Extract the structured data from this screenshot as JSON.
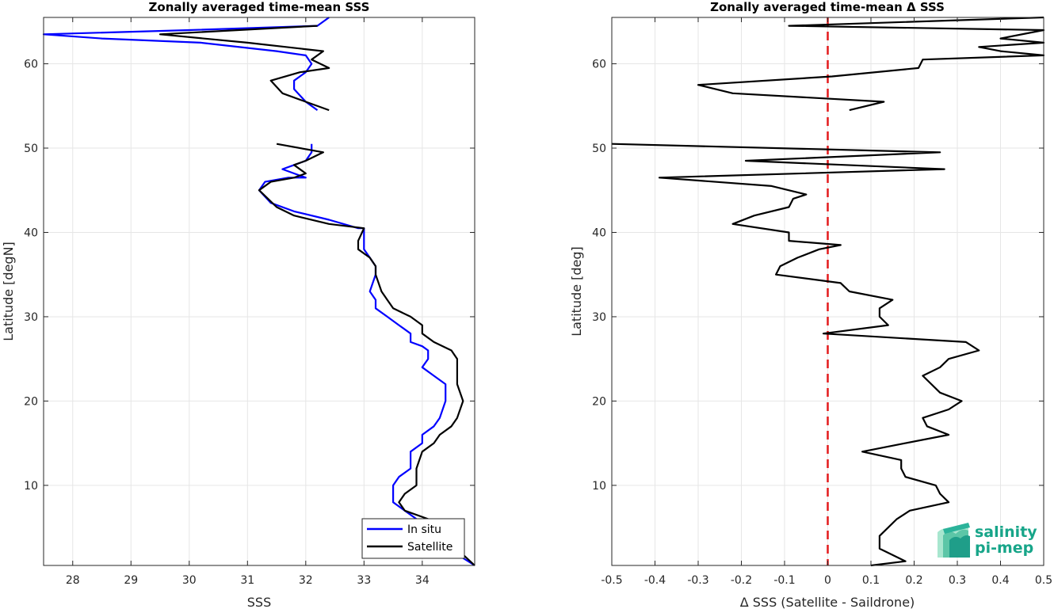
{
  "chart_data": [
    {
      "type": "line",
      "title": "Zonally averaged time-mean SSS",
      "xlabel": "SSS",
      "ylabel": "Latitude [degN]",
      "xlim": [
        27.5,
        34.9
      ],
      "ylim": [
        0.5,
        65.5
      ],
      "xticks": [
        28,
        29,
        30,
        31,
        32,
        33,
        34
      ],
      "yticks": [
        10,
        20,
        30,
        40,
        50,
        60
      ],
      "grid": true,
      "legend": "bottom-right",
      "series": [
        {
          "name": "In situ",
          "color": "#0000ff",
          "segments": [
            [
              [
                34.9,
                0.5
              ],
              [
                34.1,
                4
              ],
              [
                33.9,
                6
              ],
              [
                33.7,
                7
              ],
              [
                33.5,
                8
              ],
              [
                33.5,
                10
              ],
              [
                33.6,
                11
              ],
              [
                33.8,
                12
              ],
              [
                33.8,
                14
              ],
              [
                34.0,
                15
              ],
              [
                34.0,
                16
              ],
              [
                34.2,
                17
              ],
              [
                34.3,
                18
              ],
              [
                34.4,
                20
              ],
              [
                34.4,
                22
              ],
              [
                34.2,
                23
              ],
              [
                34.0,
                24
              ],
              [
                34.1,
                25
              ],
              [
                34.1,
                26
              ],
              [
                34.0,
                26.5
              ],
              [
                33.8,
                27
              ],
              [
                33.8,
                28
              ],
              [
                33.6,
                29
              ],
              [
                33.4,
                30
              ],
              [
                33.2,
                31
              ],
              [
                33.2,
                32
              ],
              [
                33.1,
                33
              ],
              [
                33.2,
                35
              ],
              [
                33.2,
                36
              ],
              [
                33.1,
                37
              ],
              [
                33.0,
                38
              ],
              [
                33.0,
                40.5
              ],
              [
                32.9,
                40.5
              ],
              [
                32.4,
                41.5
              ],
              [
                31.8,
                42.5
              ],
              [
                31.4,
                43.5
              ],
              [
                31.2,
                45
              ],
              [
                31.3,
                46
              ],
              [
                31.7,
                46.5
              ],
              [
                32.0,
                46.5
              ],
              [
                31.8,
                47
              ],
              [
                31.6,
                47.5
              ],
              [
                31.8,
                48
              ],
              [
                32.0,
                48.5
              ],
              [
                32.1,
                49.5
              ],
              [
                32.1,
                50.5
              ]
            ],
            [
              [
                32.2,
                54.5
              ],
              [
                32.0,
                55.5
              ],
              [
                31.8,
                57
              ],
              [
                31.8,
                58
              ],
              [
                32.0,
                59
              ],
              [
                32.1,
                60
              ],
              [
                32.0,
                61
              ],
              [
                31.5,
                61.5
              ],
              [
                30.2,
                62.5
              ],
              [
                28.5,
                63
              ],
              [
                27.5,
                63.5
              ],
              [
                30.0,
                64
              ],
              [
                32.2,
                64.5
              ],
              [
                32.4,
                65.5
              ]
            ]
          ]
        },
        {
          "name": "Satellite",
          "color": "#000000",
          "segments": [
            [
              [
                34.9,
                0.5
              ],
              [
                34.2,
                5
              ],
              [
                34.1,
                6
              ],
              [
                33.7,
                7
              ],
              [
                33.6,
                8
              ],
              [
                33.7,
                9
              ],
              [
                33.9,
                10
              ],
              [
                33.9,
                12
              ],
              [
                34.0,
                14
              ],
              [
                34.2,
                15
              ],
              [
                34.3,
                16
              ],
              [
                34.5,
                17
              ],
              [
                34.6,
                18
              ],
              [
                34.7,
                20
              ],
              [
                34.6,
                22
              ],
              [
                34.6,
                24
              ],
              [
                34.6,
                25
              ],
              [
                34.5,
                26
              ],
              [
                34.2,
                27
              ],
              [
                34.0,
                28
              ],
              [
                34.0,
                29
              ],
              [
                33.8,
                30
              ],
              [
                33.5,
                31
              ],
              [
                33.4,
                32
              ],
              [
                33.3,
                33
              ],
              [
                33.2,
                35
              ],
              [
                33.2,
                36
              ],
              [
                33.1,
                37
              ],
              [
                32.9,
                38
              ],
              [
                32.9,
                39
              ],
              [
                33.0,
                40.5
              ],
              [
                32.4,
                41
              ],
              [
                31.8,
                42
              ],
              [
                31.5,
                43
              ],
              [
                31.2,
                45
              ],
              [
                31.4,
                46
              ],
              [
                31.8,
                46.5
              ],
              [
                32.0,
                47
              ],
              [
                31.8,
                48
              ],
              [
                32.0,
                48.5
              ],
              [
                32.3,
                49.5
              ],
              [
                31.5,
                50.5
              ]
            ],
            [
              [
                32.4,
                54.5
              ],
              [
                32.0,
                55.5
              ],
              [
                31.6,
                56.5
              ],
              [
                31.4,
                58
              ],
              [
                31.9,
                59
              ],
              [
                32.4,
                59.5
              ],
              [
                32.1,
                60.5
              ],
              [
                32.3,
                61.5
              ],
              [
                31.0,
                62.5
              ],
              [
                29.5,
                63.5
              ],
              [
                32.2,
                64.5
              ]
            ]
          ]
        }
      ]
    },
    {
      "type": "line",
      "title": "Zonally averaged time-mean Δ SSS",
      "xlabel": "Δ SSS (Satellite - Saildrone)",
      "ylabel": "Latitude [deg]",
      "xlim": [
        -0.5,
        0.5
      ],
      "ylim": [
        0.5,
        65.5
      ],
      "xticks": [
        "-0.5",
        "-0.4",
        "-0.3",
        "-0.2",
        "-0.1",
        "0",
        "0.1",
        "0.2",
        "0.3",
        "0.4",
        "0.5"
      ],
      "yticks": [
        10,
        20,
        30,
        40,
        50,
        60
      ],
      "grid": true,
      "reference_line": {
        "x": 0,
        "color": "#e41a1c",
        "style": "dashed"
      },
      "series": [
        {
          "color": "#000000",
          "segments": [
            [
              [
                0.1,
                0.5
              ],
              [
                0.18,
                1
              ],
              [
                0.12,
                2.5
              ],
              [
                0.12,
                4
              ],
              [
                0.14,
                5
              ],
              [
                0.16,
                6
              ],
              [
                0.19,
                7
              ],
              [
                0.28,
                8
              ],
              [
                0.26,
                9
              ],
              [
                0.25,
                10
              ],
              [
                0.18,
                11
              ],
              [
                0.17,
                12
              ],
              [
                0.17,
                13
              ],
              [
                0.08,
                14
              ],
              [
                0.18,
                15
              ],
              [
                0.28,
                16
              ],
              [
                0.23,
                17
              ],
              [
                0.22,
                18
              ],
              [
                0.28,
                19
              ],
              [
                0.31,
                20
              ],
              [
                0.26,
                21
              ],
              [
                0.22,
                23
              ],
              [
                0.26,
                24
              ],
              [
                0.28,
                25
              ],
              [
                0.35,
                26
              ],
              [
                0.32,
                27
              ],
              [
                -0.01,
                28
              ],
              [
                0.14,
                29
              ],
              [
                0.12,
                30
              ],
              [
                0.12,
                31
              ],
              [
                0.15,
                32
              ],
              [
                0.05,
                33
              ],
              [
                0.03,
                34
              ],
              [
                -0.12,
                35
              ],
              [
                -0.11,
                36
              ],
              [
                -0.07,
                37
              ],
              [
                -0.02,
                38
              ],
              [
                0.03,
                38.5
              ],
              [
                -0.09,
                39
              ],
              [
                -0.09,
                40
              ],
              [
                -0.22,
                41
              ],
              [
                -0.17,
                42
              ],
              [
                -0.09,
                43
              ],
              [
                -0.08,
                44
              ],
              [
                -0.05,
                44.5
              ],
              [
                -0.13,
                45.5
              ],
              [
                -0.39,
                46.5
              ],
              [
                0.27,
                47.5
              ],
              [
                -0.19,
                48.5
              ],
              [
                0.26,
                49.5
              ],
              [
                -0.5,
                50.5
              ]
            ],
            [
              [
                0.05,
                54.5
              ],
              [
                0.13,
                55.5
              ],
              [
                -0.22,
                56.5
              ],
              [
                -0.3,
                57.5
              ],
              [
                0.01,
                58.5
              ],
              [
                0.21,
                59.5
              ],
              [
                0.22,
                60.5
              ],
              [
                0.5,
                61
              ],
              [
                0.4,
                61.5
              ],
              [
                0.35,
                62
              ],
              [
                0.5,
                62.5
              ],
              [
                0.4,
                63
              ],
              [
                0.5,
                64
              ],
              [
                -0.09,
                64.5
              ],
              [
                0.5,
                65.5
              ]
            ]
          ]
        }
      ]
    }
  ],
  "legend": {
    "items": [
      "In situ",
      "Satellite"
    ]
  },
  "logo": {
    "line1": "salinity",
    "line2": "pi-mep"
  }
}
